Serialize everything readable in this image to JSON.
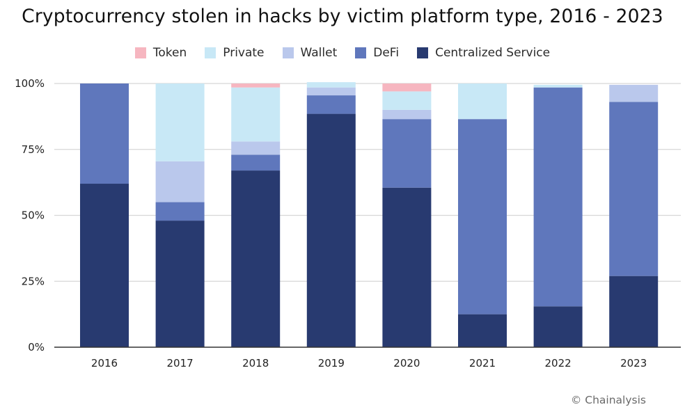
{
  "chart_data": {
    "type": "bar",
    "stacked": true,
    "title": "Cryptocurrency stolen in hacks by victim platform type, 2016 - 2023",
    "xlabel": "",
    "ylabel": "",
    "categories": [
      "2016",
      "2017",
      "2018",
      "2019",
      "2020",
      "2021",
      "2022",
      "2023"
    ],
    "ylim": [
      0,
      100
    ],
    "yticks": [
      {
        "value": 0,
        "label": "0%"
      },
      {
        "value": 25,
        "label": "25%"
      },
      {
        "value": 50,
        "label": "50%"
      },
      {
        "value": 75,
        "label": "75%"
      },
      {
        "value": 100,
        "label": "100%"
      }
    ],
    "grid": true,
    "legend_position": "top-center",
    "legend_order": [
      "Token",
      "Private",
      "Wallet",
      "DeFi",
      "Centralized Service"
    ],
    "series": [
      {
        "name": "Centralized Service",
        "color": "#283a70",
        "values": [
          62,
          48,
          67,
          88.5,
          60.5,
          12.5,
          15.5,
          27
        ]
      },
      {
        "name": "DeFi",
        "color": "#5f77bc",
        "values": [
          38,
          7,
          6,
          7,
          26,
          74,
          83,
          66
        ]
      },
      {
        "name": "Wallet",
        "color": "#bac8ec",
        "values": [
          0,
          15.5,
          5,
          3,
          3.5,
          0,
          0,
          6.5
        ]
      },
      {
        "name": "Private",
        "color": "#c8e8f6",
        "values": [
          0,
          29.5,
          20.5,
          2,
          7,
          13.5,
          1,
          0
        ]
      },
      {
        "name": "Token",
        "color": "#f6b6c0",
        "values": [
          0,
          0,
          1.5,
          0,
          3,
          0,
          0,
          0
        ]
      }
    ]
  },
  "credit": "© Chainalysis"
}
